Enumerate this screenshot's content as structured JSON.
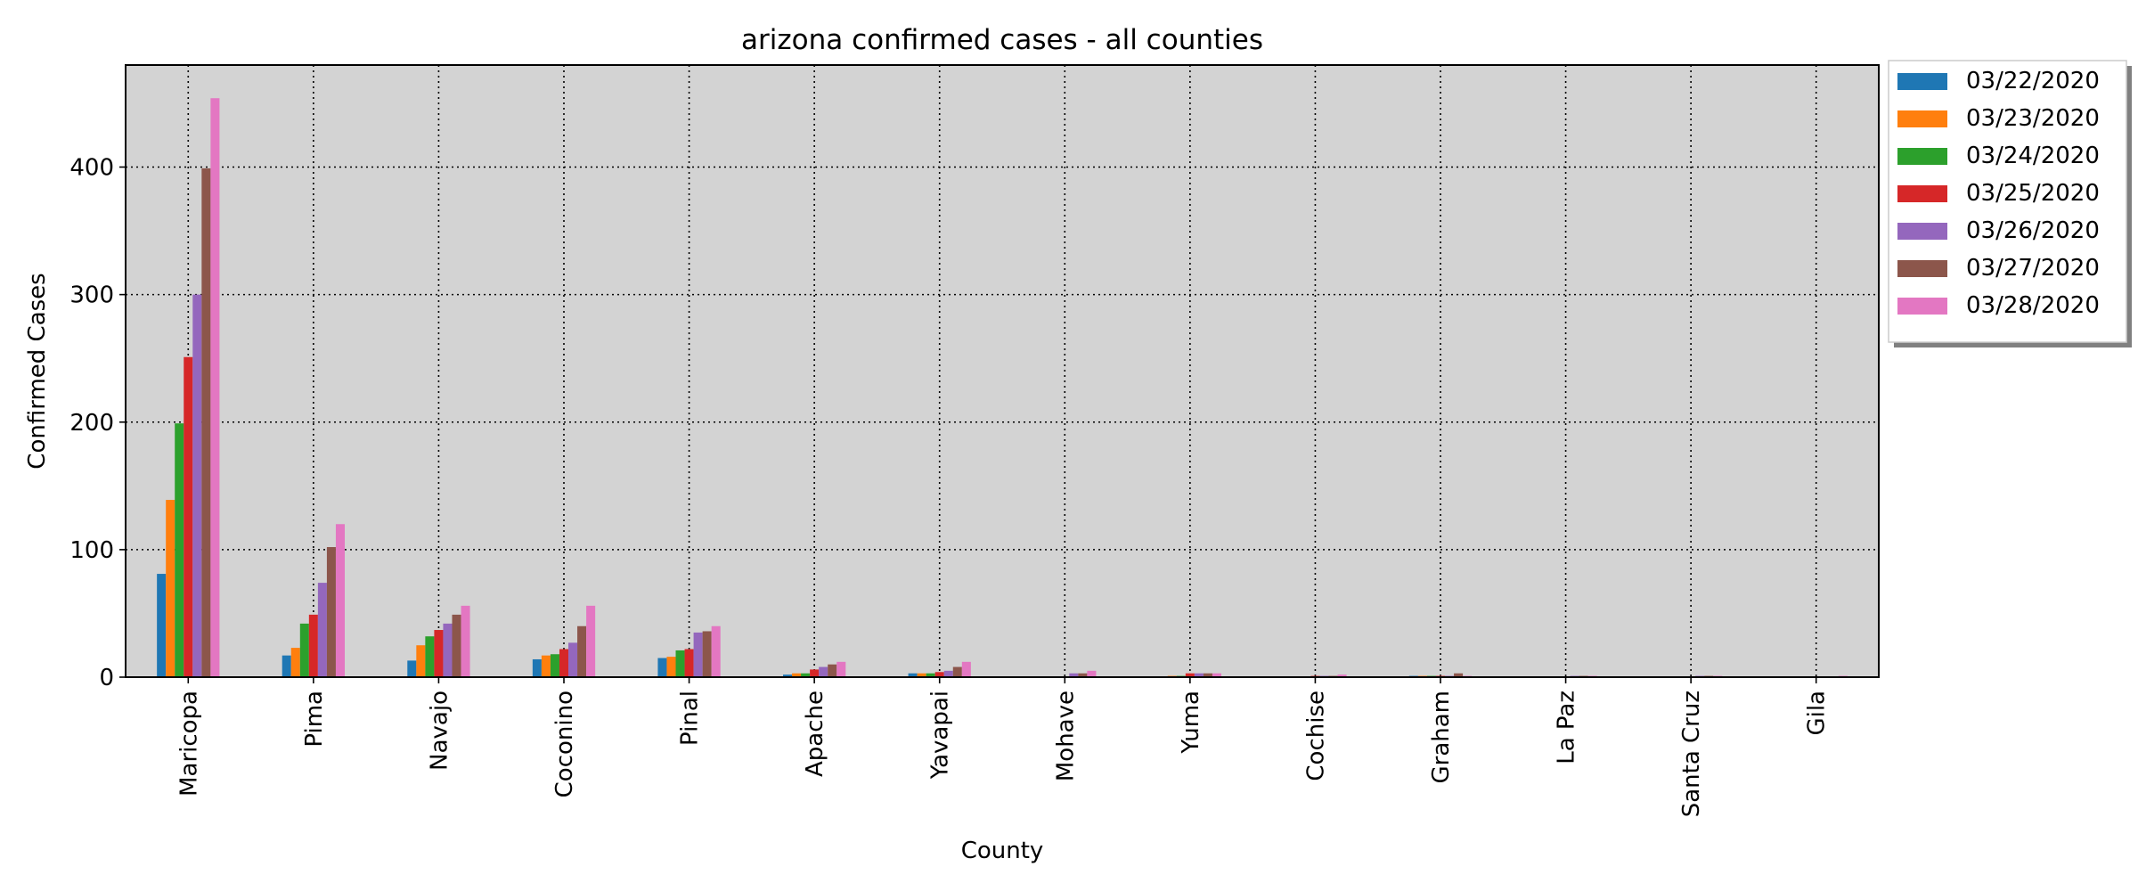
{
  "chart_data": {
    "type": "bar",
    "title": "arizona confirmed cases - all counties",
    "xlabel": "County",
    "ylabel": "Confirmed Cases",
    "ylim": [
      0,
      480
    ],
    "yticks": [
      0,
      100,
      200,
      300,
      400
    ],
    "grid": true,
    "legend_position": "outside top-right",
    "background": "#d3d3d3",
    "categories": [
      "Maricopa",
      "Pima",
      "Navajo",
      "Coconino",
      "Pinal",
      "Apache",
      "Yavapai",
      "Mohave",
      "Yuma",
      "Cochise",
      "Graham",
      "La Paz",
      "Santa Cruz",
      "Gila"
    ],
    "series": [
      {
        "name": "03/22/2020",
        "color": "#1f77b4",
        "values": [
          81,
          17,
          13,
          14,
          15,
          2,
          3,
          0,
          0,
          0,
          1,
          0,
          0,
          0
        ]
      },
      {
        "name": "03/23/2020",
        "color": "#ff7f0e",
        "values": [
          139,
          23,
          25,
          17,
          16,
          3,
          3,
          0,
          1,
          0,
          1,
          0,
          0,
          0
        ]
      },
      {
        "name": "03/24/2020",
        "color": "#2ca02c",
        "values": [
          199,
          42,
          32,
          18,
          21,
          3,
          3,
          0,
          1,
          0,
          1,
          0,
          0,
          0
        ]
      },
      {
        "name": "03/25/2020",
        "color": "#d62728",
        "values": [
          251,
          49,
          37,
          22,
          22,
          6,
          4,
          0,
          3,
          1,
          1,
          0,
          0,
          0
        ]
      },
      {
        "name": "03/26/2020",
        "color": "#9467bd",
        "values": [
          300,
          74,
          42,
          27,
          35,
          8,
          5,
          3,
          3,
          1,
          1,
          1,
          1,
          0
        ]
      },
      {
        "name": "03/27/2020",
        "color": "#8c564b",
        "values": [
          399,
          102,
          49,
          40,
          36,
          10,
          8,
          3,
          3,
          1,
          3,
          1,
          1,
          0
        ]
      },
      {
        "name": "03/28/2020",
        "color": "#e377c2",
        "values": [
          454,
          120,
          56,
          56,
          40,
          12,
          12,
          5,
          3,
          2,
          1,
          1,
          1,
          1
        ]
      }
    ]
  }
}
